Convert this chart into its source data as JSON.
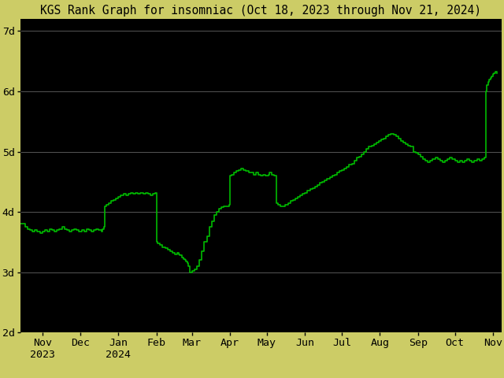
{
  "title": "KGS Rank Graph for insomniac (Oct 18, 2023 through Nov 21, 2024)",
  "background_color": "#000000",
  "outer_background_color": "#cccc66",
  "line_color": "#00bb00",
  "title_color": "#000000",
  "ylabel_color": "#000000",
  "xlabel_color": "#000000",
  "grid_color": "#555555",
  "y_ticks": [
    2,
    3,
    4,
    5,
    6,
    7
  ],
  "y_tick_labels": [
    "2d",
    "3d",
    "4d",
    "5d",
    "6d",
    "7d"
  ],
  "ylim": [
    2.0,
    7.2
  ],
  "x_tick_labels": [
    "Nov\n2023",
    "Dec",
    "Jan\n2024",
    "Feb",
    "Mar",
    "Apr",
    "May",
    "Jun",
    "Jul",
    "Aug",
    "Sep",
    "Oct",
    "Nov"
  ],
  "x_tick_positions_days": [
    18,
    49,
    80,
    111,
    140,
    171,
    201,
    232,
    262,
    293,
    324,
    354,
    385
  ],
  "line_width": 1.2,
  "title_fontsize": 10.5,
  "tick_fontsize": 9.5,
  "rank_data": [
    [
      0,
      3.8
    ],
    [
      2,
      3.8
    ],
    [
      4,
      3.75
    ],
    [
      6,
      3.72
    ],
    [
      8,
      3.7
    ],
    [
      10,
      3.68
    ],
    [
      12,
      3.7
    ],
    [
      14,
      3.68
    ],
    [
      16,
      3.65
    ],
    [
      18,
      3.68
    ],
    [
      20,
      3.7
    ],
    [
      22,
      3.68
    ],
    [
      24,
      3.72
    ],
    [
      26,
      3.7
    ],
    [
      28,
      3.68
    ],
    [
      30,
      3.7
    ],
    [
      32,
      3.72
    ],
    [
      34,
      3.75
    ],
    [
      36,
      3.72
    ],
    [
      38,
      3.7
    ],
    [
      40,
      3.68
    ],
    [
      42,
      3.7
    ],
    [
      44,
      3.72
    ],
    [
      46,
      3.7
    ],
    [
      48,
      3.68
    ],
    [
      50,
      3.7
    ],
    [
      52,
      3.68
    ],
    [
      54,
      3.72
    ],
    [
      56,
      3.7
    ],
    [
      58,
      3.68
    ],
    [
      60,
      3.7
    ],
    [
      62,
      3.72
    ],
    [
      64,
      3.7
    ],
    [
      66,
      3.68
    ],
    [
      67,
      3.72
    ],
    [
      68,
      3.75
    ],
    [
      69,
      4.1
    ],
    [
      70,
      4.12
    ],
    [
      72,
      4.15
    ],
    [
      74,
      4.18
    ],
    [
      76,
      4.2
    ],
    [
      78,
      4.22
    ],
    [
      80,
      4.25
    ],
    [
      82,
      4.28
    ],
    [
      84,
      4.3
    ],
    [
      86,
      4.28
    ],
    [
      88,
      4.3
    ],
    [
      90,
      4.32
    ],
    [
      92,
      4.3
    ],
    [
      94,
      4.32
    ],
    [
      96,
      4.3
    ],
    [
      98,
      4.32
    ],
    [
      100,
      4.3
    ],
    [
      102,
      4.32
    ],
    [
      104,
      4.3
    ],
    [
      106,
      4.28
    ],
    [
      108,
      4.3
    ],
    [
      110,
      4.32
    ],
    [
      111,
      3.5
    ],
    [
      112,
      3.48
    ],
    [
      114,
      3.45
    ],
    [
      116,
      3.42
    ],
    [
      118,
      3.4
    ],
    [
      120,
      3.38
    ],
    [
      122,
      3.35
    ],
    [
      124,
      3.32
    ],
    [
      126,
      3.3
    ],
    [
      128,
      3.32
    ],
    [
      129,
      3.3
    ],
    [
      130,
      3.28
    ],
    [
      132,
      3.25
    ],
    [
      133,
      3.22
    ],
    [
      134,
      3.2
    ],
    [
      135,
      3.18
    ],
    [
      136,
      3.15
    ],
    [
      137,
      3.1
    ],
    [
      138,
      3.0
    ],
    [
      139,
      3.0
    ],
    [
      140,
      3.02
    ],
    [
      142,
      3.05
    ],
    [
      144,
      3.1
    ],
    [
      146,
      3.2
    ],
    [
      148,
      3.35
    ],
    [
      150,
      3.5
    ],
    [
      152,
      3.6
    ],
    [
      154,
      3.75
    ],
    [
      156,
      3.85
    ],
    [
      158,
      3.95
    ],
    [
      160,
      4.0
    ],
    [
      162,
      4.05
    ],
    [
      164,
      4.08
    ],
    [
      166,
      4.1
    ],
    [
      168,
      4.1
    ],
    [
      170,
      4.12
    ],
    [
      171,
      4.6
    ],
    [
      172,
      4.62
    ],
    [
      174,
      4.65
    ],
    [
      176,
      4.68
    ],
    [
      178,
      4.7
    ],
    [
      180,
      4.72
    ],
    [
      182,
      4.7
    ],
    [
      184,
      4.68
    ],
    [
      186,
      4.65
    ],
    [
      188,
      4.65
    ],
    [
      190,
      4.62
    ],
    [
      192,
      4.65
    ],
    [
      194,
      4.62
    ],
    [
      196,
      4.6
    ],
    [
      198,
      4.62
    ],
    [
      200,
      4.6
    ],
    [
      202,
      4.62
    ],
    [
      203,
      4.65
    ],
    [
      205,
      4.62
    ],
    [
      207,
      4.6
    ],
    [
      209,
      4.15
    ],
    [
      210,
      4.12
    ],
    [
      212,
      4.1
    ],
    [
      214,
      4.1
    ],
    [
      216,
      4.12
    ],
    [
      218,
      4.15
    ],
    [
      220,
      4.18
    ],
    [
      222,
      4.2
    ],
    [
      224,
      4.22
    ],
    [
      226,
      4.25
    ],
    [
      228,
      4.28
    ],
    [
      230,
      4.3
    ],
    [
      232,
      4.32
    ],
    [
      234,
      4.35
    ],
    [
      236,
      4.38
    ],
    [
      238,
      4.4
    ],
    [
      240,
      4.42
    ],
    [
      242,
      4.45
    ],
    [
      244,
      4.48
    ],
    [
      246,
      4.5
    ],
    [
      248,
      4.52
    ],
    [
      250,
      4.55
    ],
    [
      252,
      4.58
    ],
    [
      254,
      4.6
    ],
    [
      256,
      4.62
    ],
    [
      258,
      4.65
    ],
    [
      260,
      4.68
    ],
    [
      262,
      4.7
    ],
    [
      264,
      4.72
    ],
    [
      266,
      4.75
    ],
    [
      268,
      4.78
    ],
    [
      270,
      4.8
    ],
    [
      272,
      4.85
    ],
    [
      274,
      4.9
    ],
    [
      276,
      4.92
    ],
    [
      278,
      4.95
    ],
    [
      280,
      5.0
    ],
    [
      282,
      5.05
    ],
    [
      284,
      5.08
    ],
    [
      286,
      5.1
    ],
    [
      288,
      5.12
    ],
    [
      290,
      5.15
    ],
    [
      292,
      5.18
    ],
    [
      294,
      5.2
    ],
    [
      296,
      5.22
    ],
    [
      298,
      5.25
    ],
    [
      300,
      5.28
    ],
    [
      302,
      5.3
    ],
    [
      304,
      5.28
    ],
    [
      306,
      5.25
    ],
    [
      308,
      5.22
    ],
    [
      310,
      5.18
    ],
    [
      312,
      5.15
    ],
    [
      314,
      5.12
    ],
    [
      316,
      5.1
    ],
    [
      318,
      5.08
    ],
    [
      320,
      5.0
    ],
    [
      322,
      4.98
    ],
    [
      324,
      4.95
    ],
    [
      326,
      4.92
    ],
    [
      328,
      4.88
    ],
    [
      330,
      4.85
    ],
    [
      332,
      4.82
    ],
    [
      334,
      4.85
    ],
    [
      336,
      4.88
    ],
    [
      338,
      4.9
    ],
    [
      340,
      4.88
    ],
    [
      342,
      4.85
    ],
    [
      344,
      4.82
    ],
    [
      346,
      4.85
    ],
    [
      348,
      4.88
    ],
    [
      350,
      4.9
    ],
    [
      352,
      4.88
    ],
    [
      354,
      4.85
    ],
    [
      356,
      4.82
    ],
    [
      358,
      4.85
    ],
    [
      360,
      4.82
    ],
    [
      362,
      4.85
    ],
    [
      364,
      4.88
    ],
    [
      366,
      4.85
    ],
    [
      368,
      4.82
    ],
    [
      370,
      4.85
    ],
    [
      372,
      4.88
    ],
    [
      374,
      4.85
    ],
    [
      376,
      4.88
    ],
    [
      378,
      4.9
    ],
    [
      379,
      6.0
    ],
    [
      380,
      6.1
    ],
    [
      381,
      6.15
    ],
    [
      382,
      6.2
    ],
    [
      383,
      6.22
    ],
    [
      384,
      6.25
    ],
    [
      385,
      6.28
    ],
    [
      386,
      6.3
    ],
    [
      387,
      6.32
    ],
    [
      388,
      6.3
    ]
  ]
}
